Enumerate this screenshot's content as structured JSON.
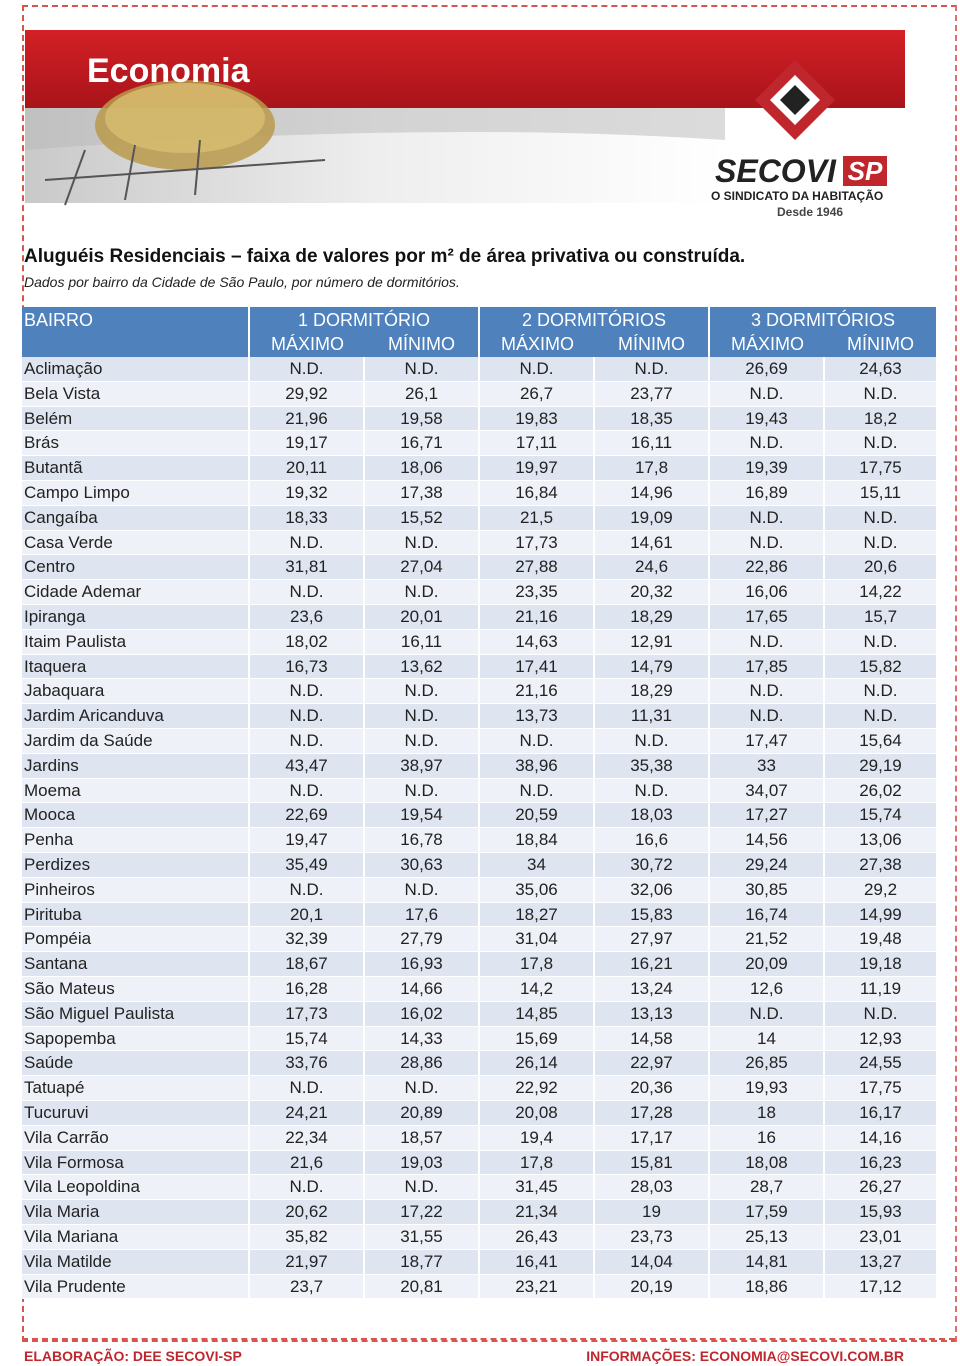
{
  "header": {
    "section": "Economia",
    "logo": "SECOVI",
    "logo_sp": "SP",
    "tagline": "O SINDICATO DA HABITAÇÃO",
    "since": "Desde 1946"
  },
  "title": "Aluguéis Residenciais – faixa de valores por m² de área privativa ou construída.",
  "subtitle": "Dados por bairro da Cidade de São Paulo, por número de dormitórios.",
  "table": {
    "columns": [
      "BAIRRO",
      "1 DORMITÓRIO",
      "2 DORMITÓRIOS",
      "3 DORMITÓRIOS"
    ],
    "subcolumns": [
      "MÁXIMO",
      "MÍNIMO",
      "MÁXIMO",
      "MÍNIMO",
      "MÁXIMO",
      "MÍNIMO"
    ],
    "rows": [
      [
        "Aclimação",
        "N.D.",
        "N.D.",
        "N.D.",
        "N.D.",
        "26,69",
        "24,63"
      ],
      [
        "Bela Vista",
        "29,92",
        "26,1",
        "26,7",
        "23,77",
        "N.D.",
        "N.D."
      ],
      [
        "Belém",
        "21,96",
        "19,58",
        "19,83",
        "18,35",
        "19,43",
        "18,2"
      ],
      [
        "Brás",
        "19,17",
        "16,71",
        "17,11",
        "16,11",
        "N.D.",
        "N.D."
      ],
      [
        "Butantã",
        "20,11",
        "18,06",
        "19,97",
        "17,8",
        "19,39",
        "17,75"
      ],
      [
        "Campo Limpo",
        "19,32",
        "17,38",
        "16,84",
        "14,96",
        "16,89",
        "15,11"
      ],
      [
        "Cangaíba",
        "18,33",
        "15,52",
        "21,5",
        "19,09",
        "N.D.",
        "N.D."
      ],
      [
        "Casa Verde",
        "N.D.",
        "N.D.",
        "17,73",
        "14,61",
        "N.D.",
        "N.D."
      ],
      [
        "Centro",
        "31,81",
        "27,04",
        "27,88",
        "24,6",
        "22,86",
        "20,6"
      ],
      [
        "Cidade Ademar",
        "N.D.",
        "N.D.",
        "23,35",
        "20,32",
        "16,06",
        "14,22"
      ],
      [
        "Ipiranga",
        "23,6",
        "20,01",
        "21,16",
        "18,29",
        "17,65",
        "15,7"
      ],
      [
        "Itaim Paulista",
        "18,02",
        "16,11",
        "14,63",
        "12,91",
        "N.D.",
        "N.D."
      ],
      [
        "Itaquera",
        "16,73",
        "13,62",
        "17,41",
        "14,79",
        "17,85",
        "15,82"
      ],
      [
        "Jabaquara",
        "N.D.",
        "N.D.",
        "21,16",
        "18,29",
        "N.D.",
        "N.D."
      ],
      [
        "Jardim Aricanduva",
        "N.D.",
        "N.D.",
        "13,73",
        "11,31",
        "N.D.",
        "N.D."
      ],
      [
        "Jardim da Saúde",
        "N.D.",
        "N.D.",
        "N.D.",
        "N.D.",
        "17,47",
        "15,64"
      ],
      [
        "Jardins",
        "43,47",
        "38,97",
        "38,96",
        "35,38",
        "33",
        "29,19"
      ],
      [
        "Moema",
        "N.D.",
        "N.D.",
        "N.D.",
        "N.D.",
        "34,07",
        "26,02"
      ],
      [
        "Mooca",
        "22,69",
        "19,54",
        "20,59",
        "18,03",
        "17,27",
        "15,74"
      ],
      [
        "Penha",
        "19,47",
        "16,78",
        "18,84",
        "16,6",
        "14,56",
        "13,06"
      ],
      [
        "Perdizes",
        "35,49",
        "30,63",
        "34",
        "30,72",
        "29,24",
        "27,38"
      ],
      [
        "Pinheiros",
        "N.D.",
        "N.D.",
        "35,06",
        "32,06",
        "30,85",
        "29,2"
      ],
      [
        "Pirituba",
        "20,1",
        "17,6",
        "18,27",
        "15,83",
        "16,74",
        "14,99"
      ],
      [
        "Pompéia",
        "32,39",
        "27,79",
        "31,04",
        "27,97",
        "21,52",
        "19,48"
      ],
      [
        "Santana",
        "18,67",
        "16,93",
        "17,8",
        "16,21",
        "20,09",
        "19,18"
      ],
      [
        "São Mateus",
        "16,28",
        "14,66",
        "14,2",
        "13,24",
        "12,6",
        "11,19"
      ],
      [
        "São Miguel Paulista",
        "17,73",
        "16,02",
        "14,85",
        "13,13",
        "N.D.",
        "N.D."
      ],
      [
        "Sapopemba",
        "15,74",
        "14,33",
        "15,69",
        "14,58",
        "14",
        "12,93"
      ],
      [
        "Saúde",
        "33,76",
        "28,86",
        "26,14",
        "22,97",
        "26,85",
        "24,55"
      ],
      [
        "Tatuapé",
        "N.D.",
        "N.D.",
        "22,92",
        "20,36",
        "19,93",
        "17,75"
      ],
      [
        "Tucuruvi",
        "24,21",
        "20,89",
        "20,08",
        "17,28",
        "18",
        "16,17"
      ],
      [
        "Vila Carrão",
        "22,34",
        "18,57",
        "19,4",
        "17,17",
        "16",
        "14,16"
      ],
      [
        "Vila Formosa",
        "21,6",
        "19,03",
        "17,8",
        "15,81",
        "18,08",
        "16,23"
      ],
      [
        "Vila Leopoldina",
        "N.D.",
        "N.D.",
        "31,45",
        "28,03",
        "28,7",
        "26,27"
      ],
      [
        "Vila Maria",
        "20,62",
        "17,22",
        "21,34",
        "19",
        "17,59",
        "15,93"
      ],
      [
        "Vila Mariana",
        "35,82",
        "31,55",
        "26,43",
        "23,73",
        "25,13",
        "23,01"
      ],
      [
        "Vila Matilde",
        "21,97",
        "18,77",
        "16,41",
        "14,04",
        "14,81",
        "13,27"
      ],
      [
        "Vila Prudente",
        "23,7",
        "20,81",
        "23,21",
        "20,19",
        "18,86",
        "17,12"
      ]
    ]
  },
  "footer": {
    "left": "ELABORAÇÃO: DEE SECOVI-SP",
    "right": "INFORMAÇÕES: ECONOMIA@SECOVI.COM.BR"
  }
}
